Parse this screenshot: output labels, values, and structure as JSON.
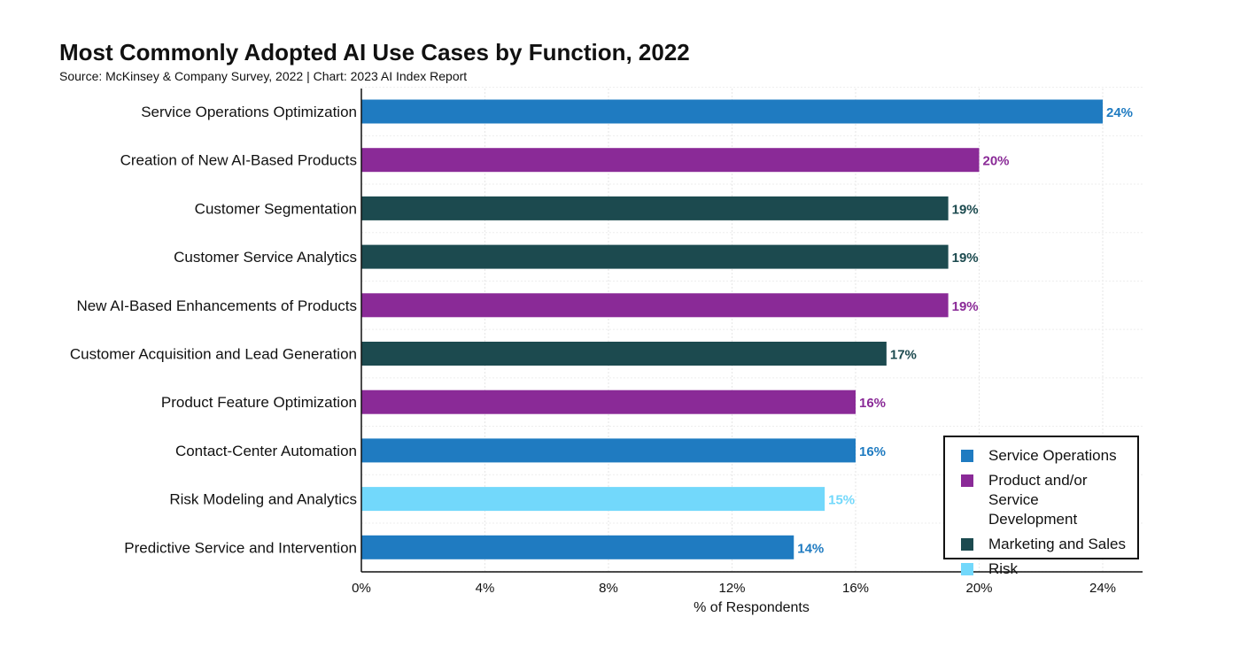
{
  "chart_data": {
    "type": "bar",
    "orientation": "horizontal",
    "title": "Most Commonly Adopted AI Use Cases by Function, 2022",
    "subtitle": "Source: McKinsey & Company Survey, 2022 | Chart: 2023 AI Index Report",
    "xlabel": "% of Respondents",
    "ylabel": "",
    "xlim": [
      0,
      24
    ],
    "x_ticks": [
      "0%",
      "4%",
      "8%",
      "12%",
      "16%",
      "20%",
      "24%"
    ],
    "x_tick_values": [
      0,
      4,
      8,
      12,
      16,
      20,
      24
    ],
    "categories": [
      "Service Operations Optimization",
      "Creation of New AI-Based Products",
      "Customer Segmentation",
      "Customer Service Analytics",
      "New AI-Based Enhancements of Products",
      "Customer Acquisition and Lead Generation",
      "Product Feature Optimization",
      "Contact-Center Automation",
      "Risk Modeling and Analytics",
      "Predictive Service and Intervention"
    ],
    "values": [
      24,
      20,
      19,
      19,
      19,
      17,
      16,
      16,
      15,
      14
    ],
    "value_labels": [
      "24%",
      "20%",
      "19%",
      "19%",
      "19%",
      "17%",
      "16%",
      "16%",
      "15%",
      "14%"
    ],
    "groups": [
      "Service Operations",
      "Product and/or Service Development",
      "Marketing and Sales",
      "Marketing and Sales",
      "Product and/or Service Development",
      "Marketing and Sales",
      "Product and/or Service Development",
      "Service Operations",
      "Risk",
      "Service Operations"
    ],
    "legend": [
      {
        "name": "Service Operations",
        "color": "#1f7bc1"
      },
      {
        "name": "Product and/or Service Development",
        "color": "#8a2a97"
      },
      {
        "name": "Marketing and Sales",
        "color": "#1c4a4f"
      },
      {
        "name": "Risk",
        "color": "#72d8fb"
      }
    ],
    "legend_position": "bottom-right",
    "grid": true
  }
}
